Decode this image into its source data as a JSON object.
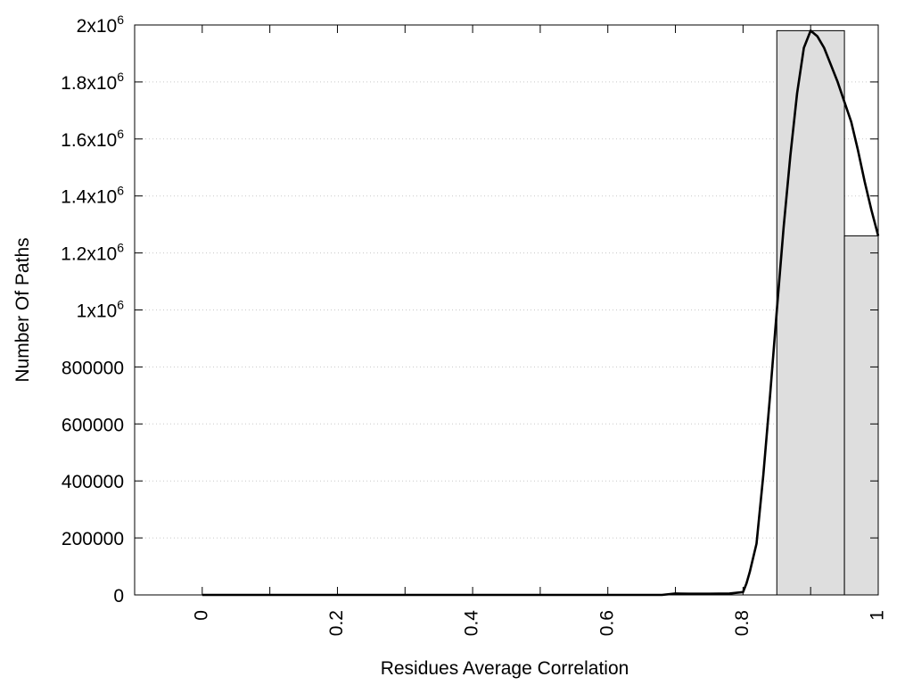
{
  "chart_data": {
    "type": "bar",
    "title": "",
    "xlabel": "Residues Average Correlation",
    "ylabel": "Number Of Paths",
    "xlim": [
      -0.1,
      1.0
    ],
    "ylim": [
      0,
      2000000
    ],
    "x_ticks": [
      {
        "value": 0,
        "label": "0"
      },
      {
        "value": 0.2,
        "label": "0.2"
      },
      {
        "value": 0.4,
        "label": "0.4"
      },
      {
        "value": 0.6,
        "label": "0.6"
      },
      {
        "value": 0.8,
        "label": "0.8"
      },
      {
        "value": 1.0,
        "label": "1"
      }
    ],
    "x_minor_ticks": [
      0.1,
      0.3,
      0.5,
      0.7,
      0.9
    ],
    "y_ticks": [
      {
        "value": 0,
        "base": "0",
        "exp": ""
      },
      {
        "value": 200000,
        "base": "200000",
        "exp": ""
      },
      {
        "value": 400000,
        "base": "400000",
        "exp": ""
      },
      {
        "value": 600000,
        "base": "600000",
        "exp": ""
      },
      {
        "value": 800000,
        "base": "800000",
        "exp": ""
      },
      {
        "value": 1000000,
        "base": "1x10",
        "exp": "6"
      },
      {
        "value": 1200000,
        "base": "1.2x10",
        "exp": "6"
      },
      {
        "value": 1400000,
        "base": "1.4x10",
        "exp": "6"
      },
      {
        "value": 1600000,
        "base": "1.6x10",
        "exp": "6"
      },
      {
        "value": 1800000,
        "base": "1.8x10",
        "exp": "6"
      },
      {
        "value": 2000000,
        "base": "2x10",
        "exp": "6"
      }
    ],
    "grid": {
      "horizontal": true,
      "style": "dotted"
    },
    "bars": [
      {
        "x_start": 0.85,
        "x_end": 0.95,
        "value": 1980000
      },
      {
        "x_start": 0.95,
        "x_end": 1.0,
        "value": 1260000
      }
    ],
    "bar_color": "#dedede",
    "curve_color": "#000000",
    "curve": {
      "x": [
        0.0,
        0.1,
        0.2,
        0.3,
        0.4,
        0.5,
        0.6,
        0.68,
        0.7,
        0.72,
        0.75,
        0.78,
        0.8,
        0.805,
        0.81,
        0.82,
        0.83,
        0.84,
        0.85,
        0.86,
        0.87,
        0.88,
        0.89,
        0.9,
        0.91,
        0.92,
        0.93,
        0.94,
        0.95,
        0.96,
        0.97,
        0.98,
        0.99,
        1.0
      ],
      "y": [
        0,
        0,
        0,
        0,
        0,
        0,
        0,
        0,
        5000,
        4000,
        4000,
        5000,
        10000,
        40000,
        80000,
        180000,
        420000,
        700000,
        1000000,
        1290000,
        1540000,
        1760000,
        1920000,
        1980000,
        1960000,
        1920000,
        1860000,
        1800000,
        1730000,
        1660000,
        1560000,
        1450000,
        1350000,
        1260000
      ]
    }
  }
}
